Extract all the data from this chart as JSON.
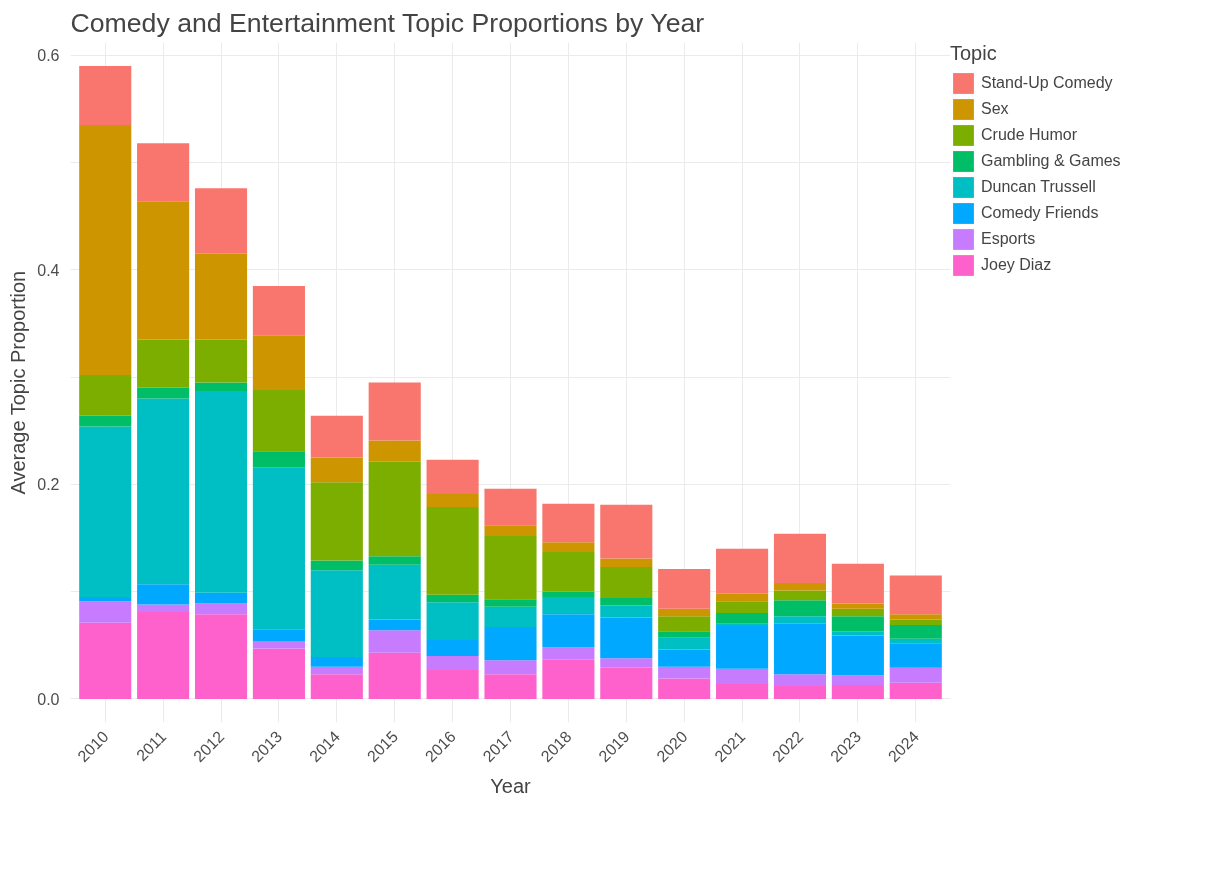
{
  "chart_data": {
    "type": "bar",
    "stacked": true,
    "title": "Comedy and Entertainment Topic Proportions by Year",
    "xlabel": "Year",
    "ylabel": "Average Topic Proportion",
    "legend_title": "Topic",
    "legend": "right",
    "grid": true,
    "categories": [
      "2010",
      "2011",
      "2012",
      "2013",
      "2014",
      "2015",
      "2016",
      "2017",
      "2018",
      "2019",
      "2020",
      "2021",
      "2022",
      "2023",
      "2024"
    ],
    "ylim": [
      -0.022,
      0.612
    ],
    "yticks": [
      {
        "value": 0,
        "label": "0.0"
      },
      {
        "value": 0.1,
        "label": null
      },
      {
        "value": 0.2,
        "label": "0.2"
      },
      {
        "value": 0.3,
        "label": null
      },
      {
        "value": 0.4,
        "label": "0.4"
      },
      {
        "value": 0.5,
        "label": null
      },
      {
        "value": 0.6,
        "label": "0.6"
      }
    ],
    "series": [
      {
        "name": "Joey Diaz",
        "color": "#ff61cc",
        "values": [
          0.071,
          0.081,
          0.079,
          0.047,
          0.023,
          0.043,
          0.027,
          0.023,
          0.037,
          0.029,
          0.019,
          0.014,
          0.012,
          0.013,
          0.015
        ]
      },
      {
        "name": "Esports",
        "color": "#c77cff",
        "values": [
          0.02,
          0.007,
          0.01,
          0.007,
          0.007,
          0.021,
          0.013,
          0.013,
          0.011,
          0.009,
          0.011,
          0.014,
          0.011,
          0.009,
          0.014
        ]
      },
      {
        "name": "Comedy Friends",
        "color": "#00a9ff",
        "values": [
          0.004,
          0.019,
          0.01,
          0.011,
          0.009,
          0.01,
          0.015,
          0.031,
          0.031,
          0.038,
          0.016,
          0.04,
          0.047,
          0.037,
          0.023
        ]
      },
      {
        "name": "Duncan Trussell",
        "color": "#00bfc4",
        "values": [
          0.159,
          0.173,
          0.188,
          0.151,
          0.081,
          0.051,
          0.035,
          0.019,
          0.016,
          0.011,
          0.011,
          0.002,
          0.007,
          0.004,
          0.004
        ]
      },
      {
        "name": "Gambling & Games",
        "color": "#00be67",
        "values": [
          0.01,
          0.01,
          0.008,
          0.015,
          0.009,
          0.008,
          0.007,
          0.007,
          0.005,
          0.007,
          0.006,
          0.01,
          0.015,
          0.014,
          0.013
        ]
      },
      {
        "name": "Crude Humor",
        "color": "#7cae00",
        "values": [
          0.038,
          0.045,
          0.04,
          0.057,
          0.073,
          0.088,
          0.082,
          0.059,
          0.037,
          0.029,
          0.014,
          0.011,
          0.009,
          0.007,
          0.005
        ]
      },
      {
        "name": "Sex",
        "color": "#cd9600",
        "values": [
          0.233,
          0.129,
          0.08,
          0.051,
          0.023,
          0.02,
          0.012,
          0.01,
          0.009,
          0.008,
          0.007,
          0.007,
          0.007,
          0.005,
          0.005
        ]
      },
      {
        "name": "Stand-Up Comedy",
        "color": "#f8766d",
        "values": [
          0.055,
          0.054,
          0.061,
          0.046,
          0.039,
          0.054,
          0.032,
          0.034,
          0.036,
          0.05,
          0.037,
          0.042,
          0.046,
          0.037,
          0.036
        ]
      }
    ]
  }
}
